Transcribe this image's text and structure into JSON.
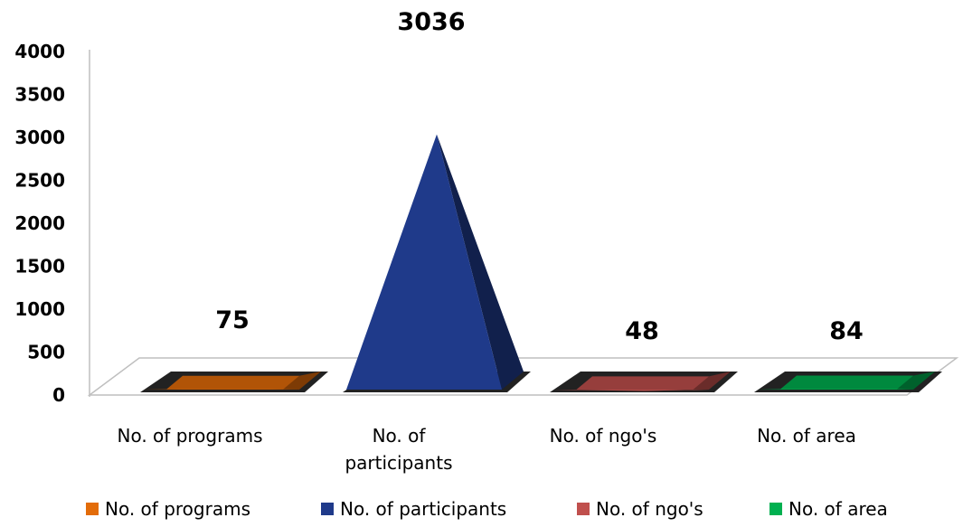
{
  "chart_data": {
    "type": "bar",
    "style": "3d-pyramid",
    "categories": [
      "No. of programs",
      "No. of participants",
      "No. of ngo's",
      "No. of area"
    ],
    "values": [
      75,
      3036,
      48,
      84
    ],
    "colors": [
      "#E36C09",
      "#1F3A8A",
      "#C0504D",
      "#00B050"
    ],
    "yticks": [
      "0",
      "500",
      "1000",
      "1500",
      "2000",
      "2500",
      "3000",
      "3500",
      "4000"
    ],
    "ylim": [
      0,
      4000
    ],
    "data_labels": [
      "75",
      "3036",
      "48",
      "84"
    ],
    "x_tick_labels": [
      [
        "No. of programs"
      ],
      [
        "No. of",
        "participants"
      ],
      [
        "No. of ngo's"
      ],
      [
        "No. of area"
      ]
    ],
    "legend": {
      "position": "bottom",
      "entries": [
        "No. of programs",
        "No. of participants",
        "No. of ngo's",
        "No. of area"
      ]
    },
    "grid": false
  }
}
